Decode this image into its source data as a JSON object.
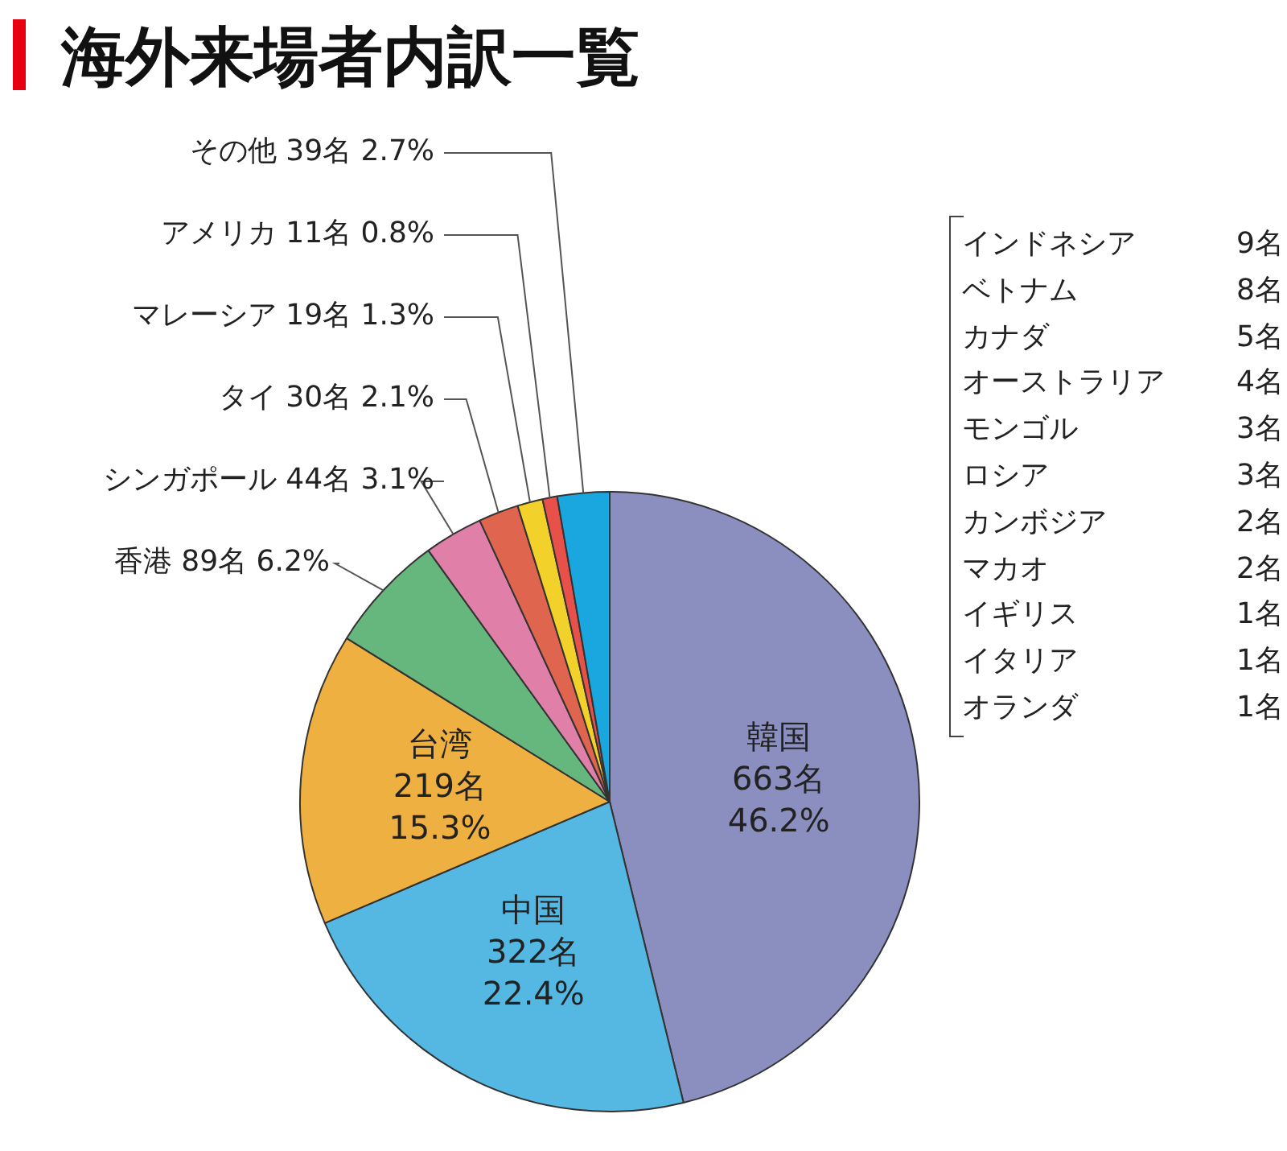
{
  "chart_data": {
    "type": "pie",
    "title": "海外来場者内訳一覧",
    "categories": [
      "韓国",
      "中国",
      "台湾",
      "香港",
      "シンガポール",
      "タイ",
      "マレーシア",
      "アメリカ",
      "その他"
    ],
    "values": [
      663,
      322,
      219,
      89,
      44,
      30,
      19,
      11,
      39
    ],
    "colors": [
      "#8a8fc0",
      "#55b8e2",
      "#eeb040",
      "#66b77e",
      "#e07fa8",
      "#e0654f",
      "#f2d22a",
      "#e8504a",
      "#1aa6de"
    ],
    "value_labels": [
      "663名 46.2%",
      "322名 22.4%",
      "219名 15.3%",
      "89名 6.2%",
      "44名 3.1%",
      "30名 2.1%",
      "19名 1.3%",
      "11名 0.8%",
      "39名 2.7%"
    ],
    "annotations": [
      "インドネシア 9名",
      "ベトナム 8名",
      "カナダ 5名",
      "オーストラリア 4名",
      "モンゴル 3名",
      "ロシア 3名",
      "カンボジア 2名",
      "マカオ 2名",
      "イギリス 1名",
      "イタリア 1名",
      "オランダ 1名"
    ]
  }
}
